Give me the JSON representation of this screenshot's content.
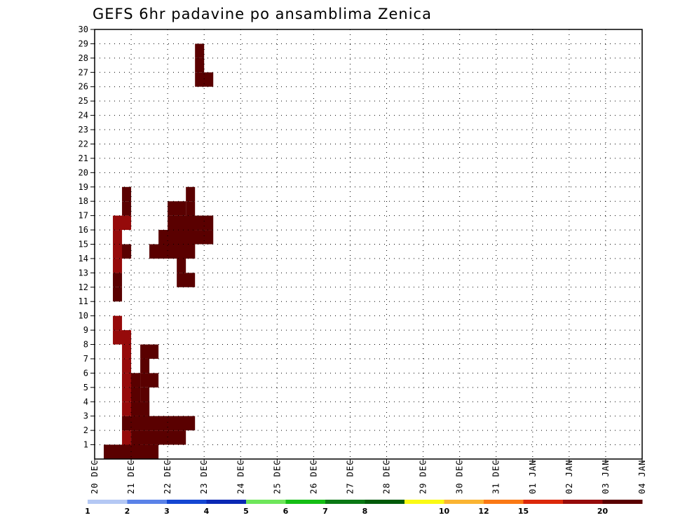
{
  "chart_data": {
    "type": "heatmap",
    "title": "GEFS 6hr padavine po ansamblima Zenica",
    "y_ticks": [
      "1",
      "2",
      "3",
      "4",
      "5",
      "6",
      "7",
      "8",
      "9",
      "10",
      "11",
      "12",
      "13",
      "14",
      "15",
      "16",
      "17",
      "18",
      "19",
      "20",
      "21",
      "22",
      "23",
      "24",
      "25",
      "26",
      "27",
      "28",
      "29",
      "30"
    ],
    "ylim": [
      0,
      30
    ],
    "x_ticks": [
      "20 DEC",
      "21 DEC",
      "22 DEC",
      "23 DEC",
      "24 DEC",
      "25 DEC",
      "26 DEC",
      "27 DEC",
      "28 DEC",
      "29 DEC",
      "30 DEC",
      "31 DEC",
      "01 JAN",
      "02 JAN",
      "03 JAN",
      "04 JAN"
    ],
    "x_units": "6-hour steps from 20 DEC 00z",
    "xlim": [
      0,
      60
    ],
    "grid": true,
    "legend_labels": [
      "1",
      "2",
      "3",
      "4",
      "5",
      "6",
      "7",
      "8",
      "10",
      "12",
      "15",
      "20"
    ],
    "legend_colors": [
      "#b4c8f4",
      "#5a82e8",
      "#1446d2",
      "#0a28b4",
      "#6ee65a",
      "#14be14",
      "#0a7814",
      "#005a0a",
      "#fafa14",
      "#fab432",
      "#fa7814",
      "#dc280a",
      "#960a0a",
      "#5a0000"
    ],
    "cells": [
      [
        1,
        0,
        20.5,
        2
      ],
      [
        1,
        0,
        21.5,
        1
      ],
      [
        1,
        0,
        23,
        1
      ],
      [
        2,
        0,
        44.5,
        2
      ],
      [
        2,
        0,
        45.3,
        5
      ],
      [
        3,
        1,
        19,
        1
      ],
      [
        3,
        2,
        20,
        2
      ],
      [
        3,
        3,
        18.5,
        2
      ],
      [
        3,
        4,
        18.5,
        2
      ],
      [
        3,
        5,
        19,
        1
      ],
      [
        3,
        5,
        18,
        2
      ],
      [
        3,
        6,
        18.5,
        1
      ],
      [
        3,
        7,
        18,
        1
      ],
      [
        2,
        8,
        18.5,
        2
      ],
      [
        2,
        9,
        18,
        1
      ],
      [
        2,
        11,
        22,
        1
      ],
      [
        2,
        12,
        23,
        1
      ],
      [
        2,
        13,
        18.5,
        1
      ],
      [
        2,
        14,
        18.5,
        2
      ],
      [
        2,
        15,
        18,
        1
      ],
      [
        2,
        16,
        18.5,
        2
      ],
      [
        3,
        14,
        21,
        1
      ],
      [
        3,
        17,
        24,
        1
      ],
      [
        3,
        18,
        22.5,
        1
      ],
      [
        4,
        0,
        28.2,
        1
      ],
      [
        4,
        1,
        29.3,
        6
      ],
      [
        4,
        2,
        30.2,
        2
      ],
      [
        4,
        3,
        31.7,
        2
      ],
      [
        4,
        4,
        33.2,
        1
      ],
      [
        4,
        5,
        35.5,
        1
      ],
      [
        5,
        2,
        35,
        6
      ],
      [
        5,
        3,
        36,
        1
      ],
      [
        5,
        4,
        38,
        1
      ],
      [
        5,
        5,
        40.5,
        2
      ],
      [
        5,
        6,
        43.5,
        1
      ],
      [
        5,
        7,
        44.3,
        2
      ],
      [
        6,
        14,
        26.5,
        1
      ],
      [
        6,
        14,
        28,
        4
      ],
      [
        7,
        14,
        34.5,
        4
      ],
      [
        7,
        15,
        34.5,
        2
      ],
      [
        8,
        15,
        34,
        5
      ],
      [
        8,
        16,
        34.5,
        5
      ],
      [
        8,
        17,
        35.5,
        2
      ],
      [
        9,
        12,
        32.5,
        2
      ],
      [
        9,
        13,
        33.5,
        1
      ],
      [
        9,
        14,
        34,
        1
      ],
      [
        9,
        15,
        35.5,
        1
      ],
      [
        10,
        14,
        47.5,
        1
      ],
      [
        10,
        15,
        48.5,
        1
      ],
      [
        10,
        16,
        50.5,
        1
      ],
      [
        10,
        17,
        52,
        1
      ],
      [
        10,
        18,
        53.5,
        1
      ],
      [
        11,
        26,
        53.5,
        2
      ],
      [
        11,
        27,
        54.5,
        1
      ],
      [
        11,
        28,
        55,
        1
      ],
      [
        12,
        36,
        59,
        1
      ],
      [
        12,
        37,
        60,
        1
      ],
      [
        13,
        34,
        53,
        1
      ],
      [
        13,
        35,
        55,
        4
      ],
      [
        13,
        36,
        56,
        1
      ],
      [
        14,
        36,
        57.5,
        2
      ],
      [
        14,
        37,
        58.5,
        3
      ],
      [
        14,
        38,
        59,
        1
      ],
      [
        15,
        40,
        57,
        1
      ],
      [
        15,
        41,
        58,
        1
      ],
      [
        15,
        42,
        59,
        1
      ],
      [
        16,
        36,
        56,
        1
      ],
      [
        16,
        37,
        57,
        1
      ],
      [
        16,
        38,
        58,
        1
      ],
      [
        17,
        47,
        57.5,
        1
      ],
      [
        18,
        48,
        57,
        1
      ],
      [
        18,
        49,
        58,
        1
      ],
      [
        18,
        50,
        59,
        1
      ],
      [
        19,
        44,
        52,
        1
      ],
      [
        19,
        45,
        53,
        1
      ],
      [
        19,
        46,
        55.5,
        1
      ],
      [
        20,
        48,
        57.5,
        1
      ],
      [
        20,
        49,
        58.5,
        1
      ],
      [
        20,
        50,
        59,
        1
      ],
      [
        21,
        49,
        57,
        2
      ],
      [
        21,
        50,
        58,
        1
      ],
      [
        21,
        51,
        59,
        2
      ],
      [
        22,
        54,
        58,
        1
      ],
      [
        22,
        55,
        59,
        1
      ],
      [
        23,
        52,
        57,
        1
      ],
      [
        23,
        53,
        58,
        1
      ],
      [
        24,
        41,
        57,
        1
      ],
      [
        24,
        42,
        58,
        1
      ],
      [
        25,
        41,
        59,
        1
      ],
      [
        26,
        57,
        59.5,
        1
      ],
      [
        26,
        58,
        60,
        1
      ],
      [
        27,
        58,
        59,
        1
      ],
      [
        28,
        57,
        59,
        1
      ],
      [
        28,
        58,
        60,
        1
      ],
      [
        29,
        60,
        60,
        1
      ]
    ]
  }
}
